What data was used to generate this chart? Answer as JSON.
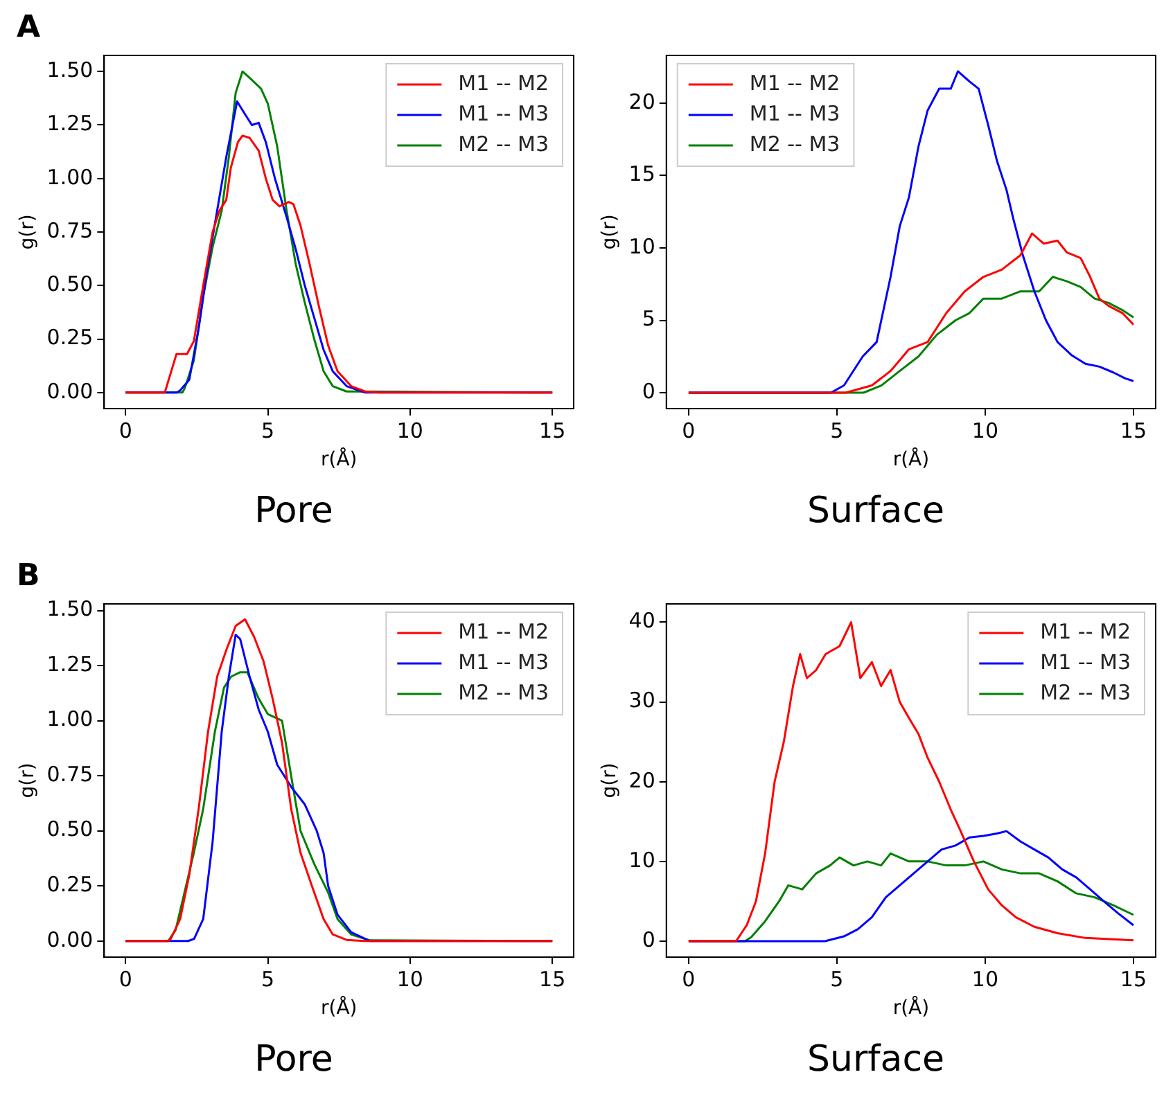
{
  "chart_data": [
    {
      "type": "line",
      "title": "Pore",
      "xlabel": "r(Å)",
      "ylabel": "g(r)",
      "annotations": [
        "A"
      ],
      "xlim": [
        -0.75,
        15.75
      ],
      "xticks": [
        0,
        5,
        10,
        15
      ],
      "ylim": [
        -0.075,
        1.575
      ],
      "yticks": [
        {
          "value": 0,
          "label": "0.00"
        },
        {
          "value": 0.25,
          "label": "0.25"
        },
        {
          "value": 0.5,
          "label": "0.50"
        },
        {
          "value": 0.75,
          "label": "0.75"
        },
        {
          "value": 1,
          "label": "1.00"
        },
        {
          "value": 1.25,
          "label": "1.25"
        },
        {
          "value": 1.5,
          "label": "1.50"
        }
      ],
      "grid": false,
      "legend": "top right",
      "marker": "none",
      "line_style": "solid",
      "series": [
        {
          "name": "M1 -- M2",
          "color": "#ff0000",
          "x": [
            0,
            1.38,
            1.79,
            2.16,
            2.4,
            2.73,
            3.06,
            3.3,
            3.54,
            3.7,
            3.95,
            4.11,
            4.36,
            4.68,
            4.93,
            5.17,
            5.41,
            5.74,
            5.9,
            6.15,
            6.47,
            6.8,
            7.12,
            7.45,
            7.93,
            8.42,
            8.9,
            15
          ],
          "values": [
            0,
            0,
            0.18,
            0.18,
            0.24,
            0.5,
            0.75,
            0.85,
            0.9,
            1.05,
            1.17,
            1.2,
            1.19,
            1.13,
            1.0,
            0.9,
            0.87,
            0.89,
            0.88,
            0.78,
            0.6,
            0.4,
            0.22,
            0.1,
            0.03,
            0.005,
            0,
            0
          ]
        },
        {
          "name": "M1 -- M3",
          "color": "#0000ff",
          "x": [
            0,
            1.8,
            1.92,
            2.24,
            2.57,
            2.9,
            3.22,
            3.54,
            3.92,
            4.2,
            4.44,
            4.68,
            4.93,
            5.25,
            5.66,
            5.98,
            6.3,
            6.63,
            6.96,
            7.28,
            7.77,
            8.42,
            15
          ],
          "values": [
            0,
            0,
            0.01,
            0.06,
            0.3,
            0.6,
            0.85,
            1.1,
            1.36,
            1.3,
            1.25,
            1.26,
            1.17,
            1.0,
            0.82,
            0.67,
            0.5,
            0.35,
            0.2,
            0.1,
            0.03,
            0,
            0
          ]
        },
        {
          "name": "M2 -- M3",
          "color": "#008000",
          "x": [
            0,
            2.0,
            2.08,
            2.4,
            2.73,
            3.06,
            3.38,
            3.63,
            3.87,
            4.11,
            4.36,
            4.76,
            5.0,
            5.33,
            5.66,
            5.98,
            6.3,
            6.63,
            6.96,
            7.28,
            7.77,
            15
          ],
          "values": [
            0,
            0,
            0.02,
            0.15,
            0.45,
            0.68,
            0.85,
            1.1,
            1.4,
            1.5,
            1.47,
            1.42,
            1.35,
            1.15,
            0.85,
            0.6,
            0.42,
            0.25,
            0.1,
            0.03,
            0.005,
            0
          ]
        }
      ]
    },
    {
      "type": "line",
      "title": "Surface",
      "xlabel": "r(Å)",
      "ylabel": "g(r)",
      "xlim": [
        -0.75,
        15.75
      ],
      "xticks": [
        0,
        5,
        10,
        15
      ],
      "ylim": [
        -1.1,
        23.3
      ],
      "yticks": [
        0,
        5,
        10,
        15,
        20
      ],
      "grid": false,
      "legend": "top left",
      "marker": "none",
      "line_style": "solid",
      "series": [
        {
          "name": "M1 -- M2",
          "color": "#ff0000",
          "x": [
            0,
            5.3,
            6.18,
            6.81,
            7.43,
            8.06,
            8.69,
            9.31,
            9.94,
            10.56,
            11.19,
            11.58,
            11.97,
            12.44,
            12.75,
            13.22,
            13.54,
            13.85,
            14.16,
            14.63,
            15
          ],
          "values": [
            0,
            0,
            0.5,
            1.5,
            3,
            3.5,
            5.5,
            7,
            8,
            8.5,
            9.5,
            11,
            10.3,
            10.5,
            9.7,
            9.3,
            8,
            6.5,
            6,
            5.5,
            4.7
          ]
        },
        {
          "name": "M1 -- M3",
          "color": "#0000ff",
          "x": [
            0,
            4.8,
            5.24,
            5.87,
            6.34,
            6.81,
            7.12,
            7.43,
            7.75,
            8.06,
            8.45,
            8.84,
            9.08,
            9.47,
            9.78,
            10.1,
            10.4,
            10.72,
            10.95,
            11.27,
            11.66,
            12.05,
            12.44,
            12.91,
            13.38,
            13.85,
            14.32,
            14.71,
            15
          ],
          "values": [
            0,
            0,
            0.5,
            2.5,
            3.5,
            8,
            11.5,
            13.5,
            17,
            19.5,
            21,
            21,
            22.2,
            21.5,
            21,
            18.5,
            16,
            14,
            12,
            9.5,
            7,
            5,
            3.5,
            2.6,
            2,
            1.8,
            1.4,
            1.0,
            0.8
          ]
        },
        {
          "name": "M2 -- M3",
          "color": "#008000",
          "x": [
            0,
            5.9,
            6.5,
            7.12,
            7.75,
            8.37,
            9.0,
            9.47,
            9.94,
            10.56,
            11.19,
            11.82,
            12.28,
            12.75,
            13.22,
            13.69,
            14.16,
            14.63,
            15
          ],
          "values": [
            0,
            0,
            0.5,
            1.5,
            2.5,
            4,
            5,
            5.5,
            6.5,
            6.5,
            7,
            7,
            8,
            7.7,
            7.3,
            6.5,
            6.2,
            5.7,
            5.2
          ]
        }
      ]
    },
    {
      "type": "line",
      "title": "Pore",
      "xlabel": "r(Å)",
      "ylabel": "g(r)",
      "annotations": [
        "B"
      ],
      "xlim": [
        -0.75,
        15.75
      ],
      "xticks": [
        0,
        5,
        10,
        15
      ],
      "ylim": [
        -0.073,
        1.53
      ],
      "yticks": [
        {
          "value": 0,
          "label": "0.00"
        },
        {
          "value": 0.25,
          "label": "0.25"
        },
        {
          "value": 0.5,
          "label": "0.50"
        },
        {
          "value": 0.75,
          "label": "0.75"
        },
        {
          "value": 1,
          "label": "1.00"
        },
        {
          "value": 1.25,
          "label": "1.25"
        },
        {
          "value": 1.5,
          "label": "1.50"
        }
      ],
      "grid": false,
      "legend": "top right",
      "marker": "none",
      "line_style": "solid",
      "series": [
        {
          "name": "M1 -- M2",
          "color": "#ff0000",
          "x": [
            0,
            1.5,
            1.59,
            1.92,
            2.24,
            2.57,
            2.9,
            3.22,
            3.54,
            3.87,
            4.2,
            4.52,
            4.85,
            5.17,
            5.5,
            5.82,
            6.15,
            6.55,
            6.96,
            7.28,
            7.77,
            8.42,
            15
          ],
          "values": [
            0,
            0,
            0.01,
            0.1,
            0.3,
            0.6,
            0.95,
            1.2,
            1.32,
            1.43,
            1.46,
            1.38,
            1.27,
            1.1,
            0.9,
            0.6,
            0.4,
            0.25,
            0.1,
            0.03,
            0.005,
            0,
            0
          ]
        },
        {
          "name": "M1 -- M3",
          "color": "#0000ff",
          "x": [
            0,
            2.2,
            2.41,
            2.73,
            3.06,
            3.38,
            3.63,
            3.87,
            4.03,
            4.36,
            4.68,
            5.0,
            5.33,
            5.82,
            6.3,
            6.72,
            6.96,
            7.12,
            7.45,
            7.93,
            8.59,
            15
          ],
          "values": [
            0,
            0,
            0.01,
            0.1,
            0.45,
            0.95,
            1.2,
            1.39,
            1.37,
            1.2,
            1.05,
            0.95,
            0.8,
            0.7,
            0.62,
            0.5,
            0.4,
            0.25,
            0.12,
            0.04,
            0,
            0
          ]
        },
        {
          "name": "M2 -- M3",
          "color": "#008000",
          "x": [
            0,
            1.5,
            1.76,
            2.4,
            2.73,
            3.14,
            3.46,
            3.71,
            4.03,
            4.28,
            4.68,
            5.0,
            5.5,
            5.82,
            6.15,
            6.63,
            7.12,
            7.45,
            7.93,
            8.59,
            15
          ],
          "values": [
            0,
            0,
            0.05,
            0.4,
            0.6,
            0.95,
            1.15,
            1.2,
            1.22,
            1.22,
            1.1,
            1.03,
            1.0,
            0.75,
            0.5,
            0.35,
            0.22,
            0.1,
            0.03,
            0.003,
            0
          ]
        }
      ]
    },
    {
      "type": "line",
      "title": "Surface",
      "xlabel": "r(Å)",
      "ylabel": "g(r)",
      "xlim": [
        -0.75,
        15.75
      ],
      "xticks": [
        0,
        5,
        10,
        15
      ],
      "ylim": [
        -2,
        42.3
      ],
      "yticks": [
        0,
        10,
        20,
        30,
        40
      ],
      "grid": false,
      "legend": "top right",
      "marker": "none",
      "line_style": "solid",
      "series": [
        {
          "name": "M1 -- M2",
          "color": "#ff0000",
          "x": [
            0,
            1.6,
            1.96,
            2.27,
            2.58,
            2.9,
            3.21,
            3.52,
            3.76,
            3.99,
            4.3,
            4.62,
            5.09,
            5.48,
            5.79,
            6.18,
            6.49,
            6.81,
            7.12,
            7.43,
            7.75,
            8.06,
            8.45,
            8.84,
            9.15,
            9.62,
            10.1,
            10.56,
            11.03,
            11.66,
            12.44,
            13.38,
            15
          ],
          "values": [
            0,
            0,
            2,
            5,
            11,
            20,
            25,
            32,
            36,
            33,
            34,
            36,
            37,
            40,
            33,
            35,
            32,
            34,
            30,
            28,
            26,
            23,
            20,
            16.5,
            14,
            10,
            6.5,
            4.5,
            3,
            1.8,
            1.0,
            0.4,
            0.1
          ]
        },
        {
          "name": "M1 -- M3",
          "color": "#0000ff",
          "x": [
            0,
            4.6,
            5.24,
            5.71,
            6.18,
            6.65,
            7.12,
            7.59,
            8.06,
            8.53,
            9.0,
            9.47,
            9.94,
            10.4,
            10.72,
            11.19,
            11.66,
            12.13,
            12.6,
            13.07,
            13.54,
            14.0,
            14.48,
            15
          ],
          "values": [
            0,
            0,
            0.6,
            1.5,
            3,
            5.5,
            7,
            8.5,
            10,
            11.5,
            12,
            13,
            13.2,
            13.5,
            13.8,
            12.5,
            11.5,
            10.5,
            9.0,
            8.0,
            6.5,
            5,
            3.5,
            2.0
          ]
        },
        {
          "name": "M2 -- M3",
          "color": "#008000",
          "x": [
            0,
            1.9,
            2.11,
            2.58,
            3.05,
            3.36,
            3.83,
            4.3,
            4.77,
            5.09,
            5.56,
            6.03,
            6.49,
            6.81,
            7.43,
            8.06,
            8.69,
            9.31,
            9.94,
            10.56,
            11.19,
            11.82,
            12.44,
            13.07,
            13.69,
            14.32,
            15
          ],
          "values": [
            0,
            0,
            0.5,
            2.5,
            5,
            7,
            6.5,
            8.5,
            9.5,
            10.5,
            9.5,
            10,
            9.5,
            11,
            10,
            10,
            9.5,
            9.5,
            10,
            9,
            8.5,
            8.5,
            7.5,
            6,
            5.5,
            4.5,
            3.3
          ]
        }
      ]
    }
  ]
}
